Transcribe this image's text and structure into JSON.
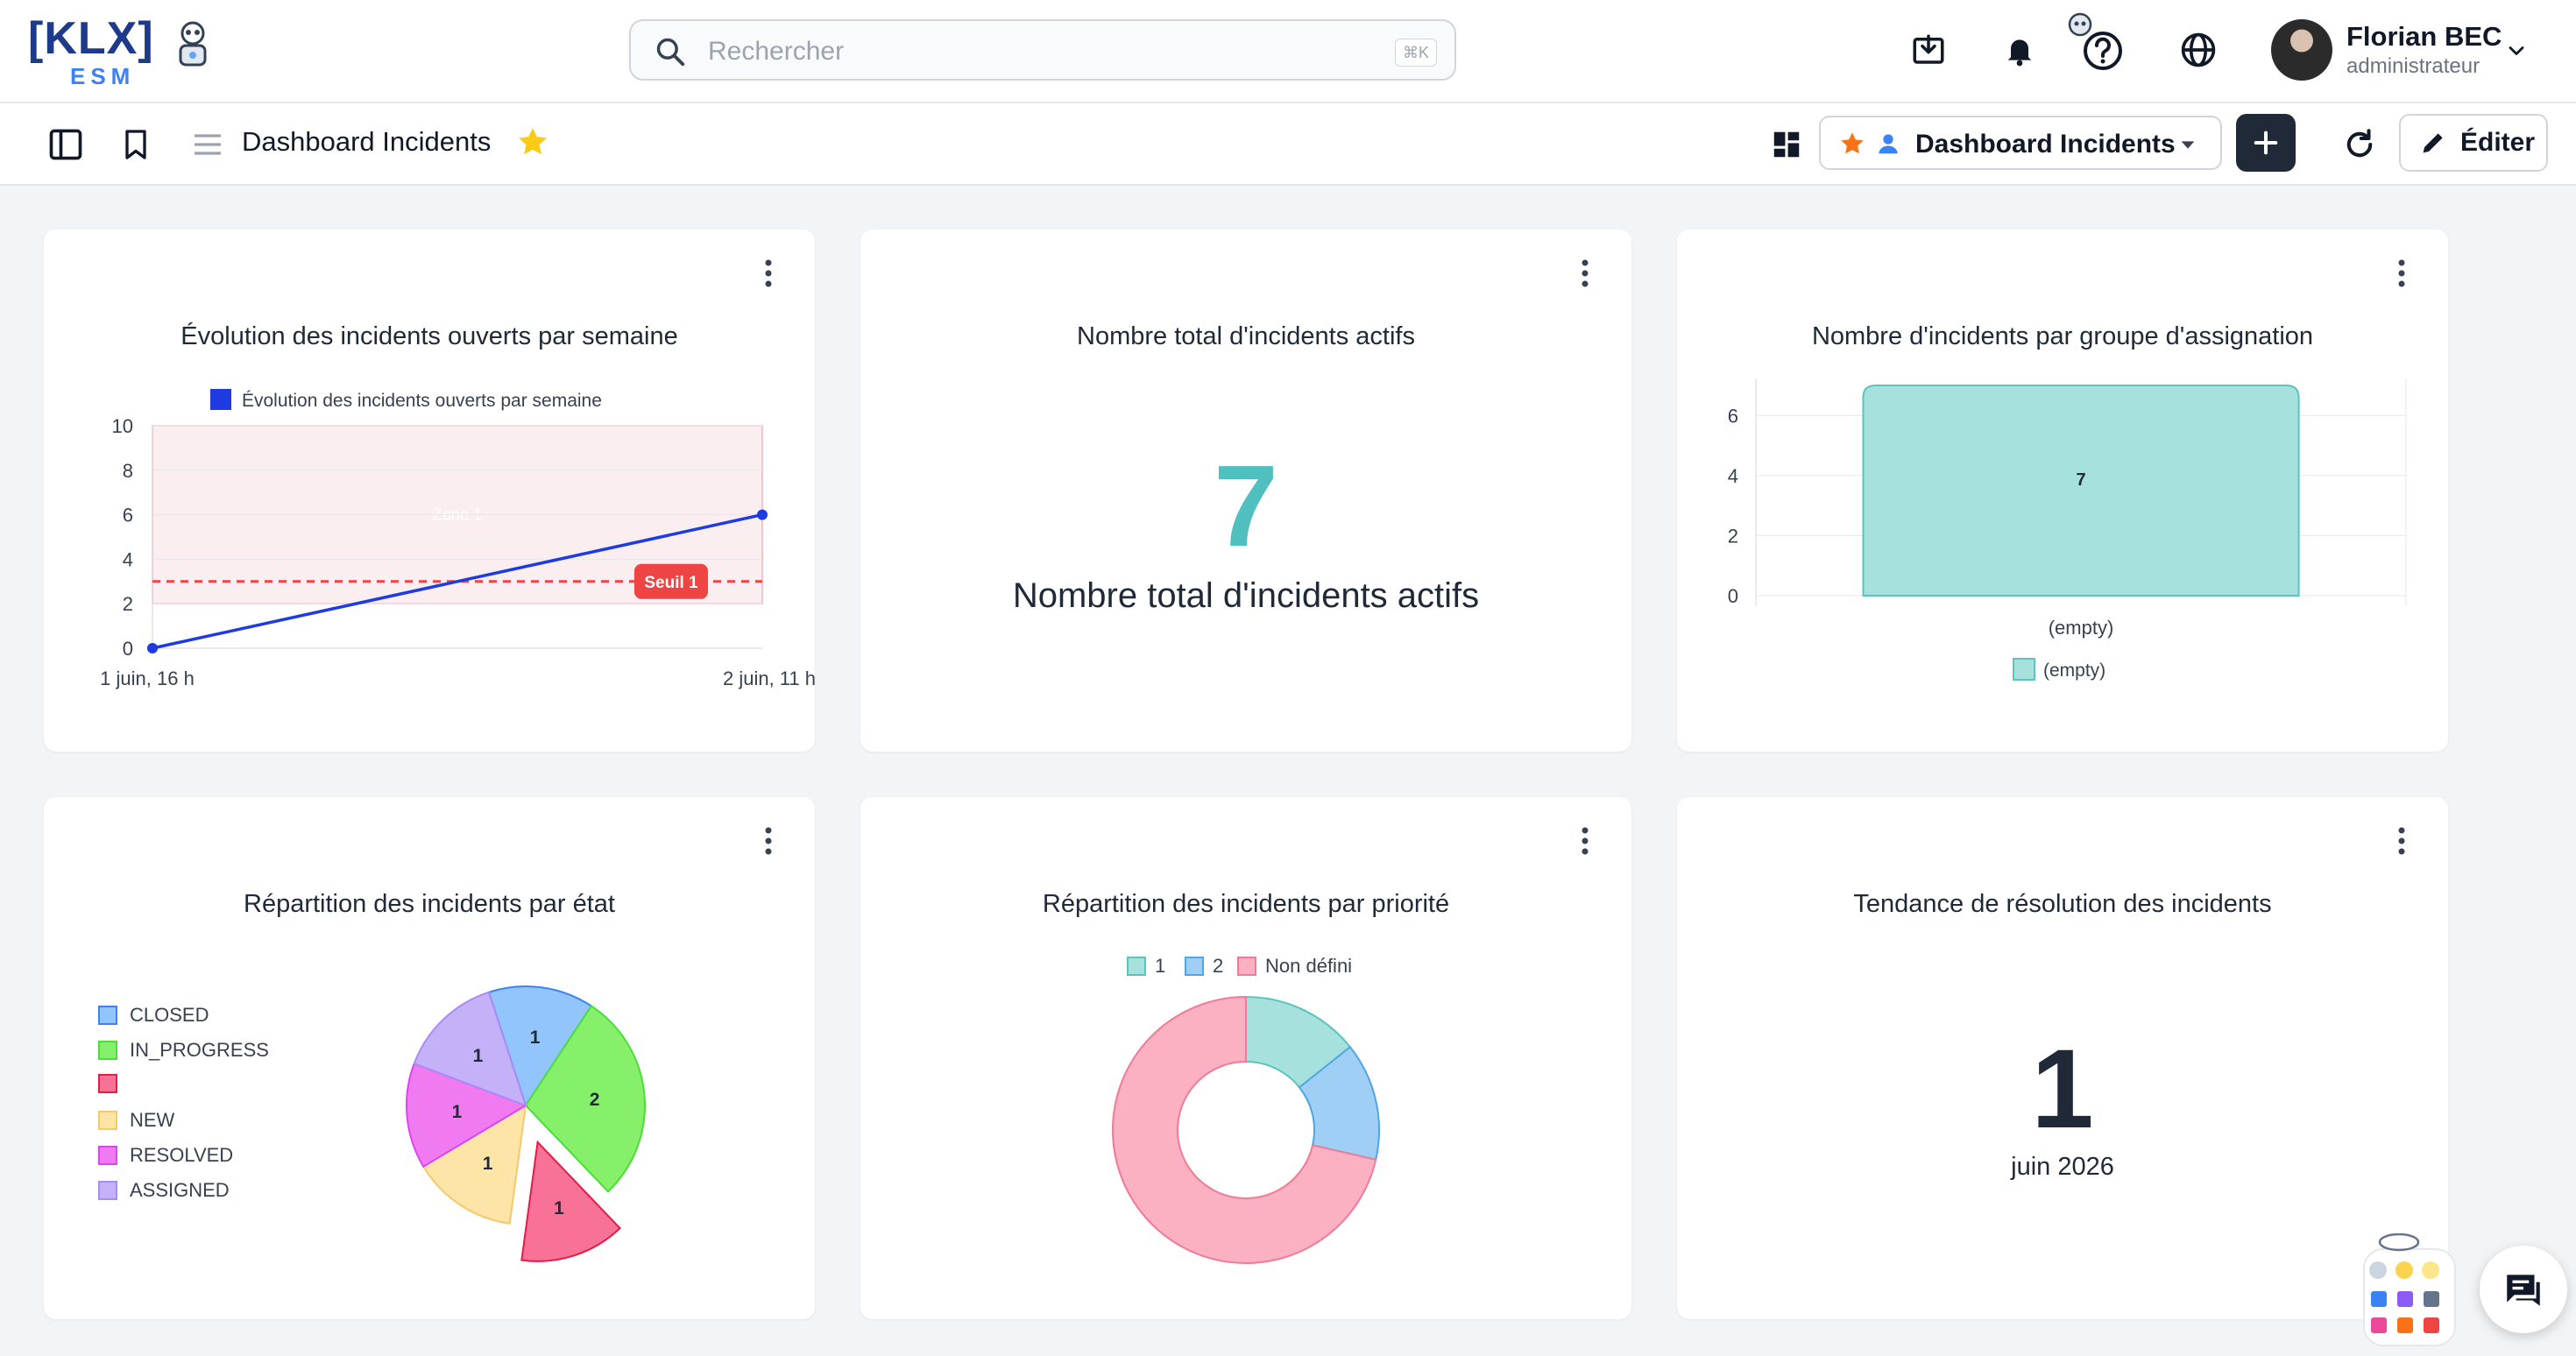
{
  "app": {
    "logo_text": "[KLX]",
    "logo_sub": "ESM"
  },
  "search": {
    "placeholder": "Rechercher",
    "shortcut": "⌘K"
  },
  "header_icons": [
    "download-icon",
    "bell-icon",
    "help-icon",
    "globe-icon"
  ],
  "user": {
    "name": "Florian BEC",
    "role": "administrateur"
  },
  "subheader": {
    "title": "Dashboard Incidents",
    "dashboard_select": "Dashboard Incidents",
    "edit_label": "Éditer"
  },
  "cards": {
    "weekly": {
      "title": "Évolution des incidents ouverts par semaine",
      "legend": "Évolution des incidents ouverts par semaine",
      "zone_label": "Zone 1",
      "threshold_label": "Seuil 1"
    },
    "total": {
      "title": "Nombre total d'incidents actifs",
      "value": "7",
      "subtitle": "Nombre total d'incidents actifs"
    },
    "group": {
      "title": "Nombre d'incidents par groupe d'assignation",
      "bar_label": "7",
      "legend": "(empty)"
    },
    "state": {
      "title": "Répartition des incidents par état"
    },
    "priority": {
      "title": "Répartition des incidents par priorité"
    },
    "trend": {
      "title": "Tendance de résolution des incidents",
      "value": "1",
      "subtitle": "juin 2026"
    }
  },
  "colors": {
    "accent_teal": "#4fbfbf",
    "dark_button": "#1f2937",
    "star": "#facc15",
    "threshold": "#ef4444"
  },
  "chart_data": [
    {
      "type": "line",
      "title": "Évolution des incidents ouverts par semaine",
      "x": [
        "1 juin, 16 h",
        "2 juin, 11 h"
      ],
      "series": [
        {
          "name": "Évolution des incidents ouverts par semaine",
          "values": [
            0,
            6
          ],
          "color": "#1d3be0"
        }
      ],
      "ylim": [
        0,
        10
      ],
      "yticks": [
        "0",
        "2",
        "4",
        "6",
        "8",
        "10"
      ],
      "threshold": 3,
      "zone": [
        2,
        10
      ]
    },
    {
      "type": "bar",
      "title": "Nombre d'incidents par groupe d'assignation",
      "categories": [
        "(empty)"
      ],
      "values": [
        7
      ],
      "ylim": [
        0,
        7
      ],
      "yticks": [
        "0",
        "2",
        "4",
        "6"
      ],
      "legend": "(empty)"
    },
    {
      "type": "pie",
      "title": "Répartition des incidents par état",
      "labels": [
        "CLOSED",
        "IN_PROGRESS",
        "",
        "NEW",
        "RESOLVED",
        "ASSIGNED"
      ],
      "values": [
        1,
        2,
        1,
        1,
        1,
        1
      ],
      "colors": [
        "#93c5fd",
        "#86f06a",
        "#f87196",
        "#fde4a7",
        "#f07af0",
        "#c4b1f7"
      ],
      "borders": [
        "#3b82f6",
        "#4ade39",
        "#e11d48",
        "#f5c86b",
        "#d946ef",
        "#a78bfa"
      ]
    },
    {
      "type": "pie",
      "title": "Répartition des incidents par priorité",
      "labels": [
        "1",
        "2",
        "Non défini"
      ],
      "values": [
        1,
        1,
        5
      ],
      "colors": [
        "#a6e1dd",
        "#9fcff4",
        "#fbb1c1"
      ],
      "borders": [
        "#5cc4bd",
        "#4fa6e6",
        "#f07a98"
      ]
    }
  ]
}
